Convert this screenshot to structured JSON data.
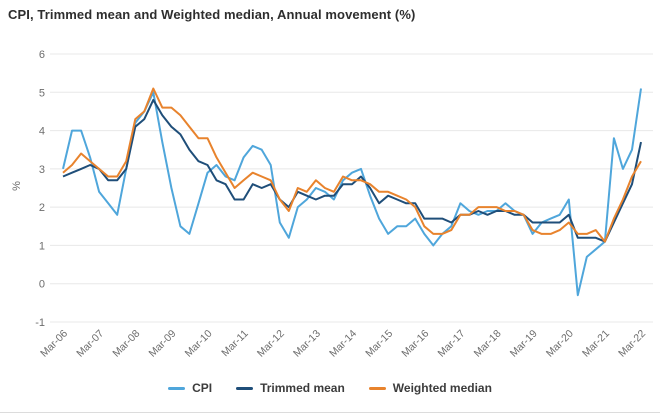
{
  "chart_data": {
    "type": "line",
    "title": "CPI, Trimmed mean and Weighted median, Annual movement (%)",
    "ylabel": "%",
    "ylim": [
      -1,
      6
    ],
    "y_ticks": [
      6,
      5,
      4,
      3,
      2,
      1,
      0,
      -1
    ],
    "x_tick_every": 4,
    "x_tick_labels": [
      "Mar-06",
      "Mar-07",
      "Mar-08",
      "Mar-09",
      "Mar-10",
      "Mar-11",
      "Mar-12",
      "Mar-13",
      "Mar-14",
      "Mar-15",
      "Mar-16",
      "Mar-17",
      "Mar-18",
      "Mar-19",
      "Mar-20",
      "Mar-21",
      "Mar-22"
    ],
    "grid": true,
    "legend_position": "bottom",
    "categories": [
      "Mar-06",
      "Jun-06",
      "Sep-06",
      "Dec-06",
      "Mar-07",
      "Jun-07",
      "Sep-07",
      "Dec-07",
      "Mar-08",
      "Jun-08",
      "Sep-08",
      "Dec-08",
      "Mar-09",
      "Jun-09",
      "Sep-09",
      "Dec-09",
      "Mar-10",
      "Jun-10",
      "Sep-10",
      "Dec-10",
      "Mar-11",
      "Jun-11",
      "Sep-11",
      "Dec-11",
      "Mar-12",
      "Jun-12",
      "Sep-12",
      "Dec-12",
      "Mar-13",
      "Jun-13",
      "Sep-13",
      "Dec-13",
      "Mar-14",
      "Jun-14",
      "Sep-14",
      "Dec-14",
      "Mar-15",
      "Jun-15",
      "Sep-15",
      "Dec-15",
      "Mar-16",
      "Jun-16",
      "Sep-16",
      "Dec-16",
      "Mar-17",
      "Jun-17",
      "Sep-17",
      "Dec-17",
      "Mar-18",
      "Jun-18",
      "Sep-18",
      "Dec-18",
      "Mar-19",
      "Jun-19",
      "Sep-19",
      "Dec-19",
      "Mar-20",
      "Jun-20",
      "Sep-20",
      "Dec-20",
      "Mar-21",
      "Jun-21",
      "Sep-21",
      "Dec-21",
      "Mar-22"
    ],
    "series": [
      {
        "name": "CPI",
        "color": "#4fa6db",
        "values": [
          3.0,
          4.0,
          4.0,
          3.3,
          2.4,
          2.1,
          1.8,
          3.0,
          4.2,
          4.5,
          5.0,
          3.7,
          2.5,
          1.5,
          1.3,
          2.1,
          2.9,
          3.1,
          2.8,
          2.7,
          3.3,
          3.6,
          3.5,
          3.1,
          1.6,
          1.2,
          2.0,
          2.2,
          2.5,
          2.4,
          2.2,
          2.7,
          2.9,
          3.0,
          2.3,
          1.7,
          1.3,
          1.5,
          1.5,
          1.7,
          1.3,
          1.0,
          1.3,
          1.5,
          2.1,
          1.9,
          1.8,
          1.9,
          1.9,
          2.1,
          1.9,
          1.8,
          1.3,
          1.6,
          1.7,
          1.8,
          2.2,
          -0.3,
          0.7,
          0.9,
          1.1,
          3.8,
          3.0,
          3.5,
          5.1
        ]
      },
      {
        "name": "Trimmed mean",
        "color": "#1f4e79",
        "values": [
          2.8,
          2.9,
          3.0,
          3.1,
          3.0,
          2.7,
          2.7,
          3.0,
          4.1,
          4.3,
          4.8,
          4.4,
          4.1,
          3.9,
          3.5,
          3.2,
          3.1,
          2.7,
          2.6,
          2.2,
          2.2,
          2.6,
          2.5,
          2.6,
          2.2,
          2.0,
          2.4,
          2.3,
          2.2,
          2.3,
          2.3,
          2.6,
          2.6,
          2.8,
          2.5,
          2.1,
          2.3,
          2.2,
          2.1,
          2.1,
          1.7,
          1.7,
          1.7,
          1.6,
          1.8,
          1.8,
          1.9,
          1.8,
          1.9,
          1.9,
          1.8,
          1.8,
          1.6,
          1.6,
          1.6,
          1.6,
          1.8,
          1.2,
          1.2,
          1.2,
          1.1,
          1.6,
          2.1,
          2.6,
          3.7
        ]
      },
      {
        "name": "Weighted median",
        "color": "#e8832d",
        "values": [
          2.9,
          3.1,
          3.4,
          3.2,
          3.0,
          2.8,
          2.8,
          3.2,
          4.3,
          4.5,
          5.1,
          4.6,
          4.6,
          4.4,
          4.1,
          3.8,
          3.8,
          3.3,
          2.9,
          2.5,
          2.7,
          2.9,
          2.8,
          2.7,
          2.2,
          1.9,
          2.5,
          2.4,
          2.7,
          2.5,
          2.4,
          2.8,
          2.7,
          2.7,
          2.6,
          2.4,
          2.4,
          2.3,
          2.2,
          2.0,
          1.5,
          1.3,
          1.3,
          1.4,
          1.8,
          1.8,
          2.0,
          2.0,
          2.0,
          1.9,
          1.9,
          1.8,
          1.4,
          1.3,
          1.3,
          1.4,
          1.6,
          1.3,
          1.3,
          1.4,
          1.1,
          1.7,
          2.2,
          2.8,
          3.2
        ]
      }
    ],
    "style": {
      "grid_color": "#e8e8e8",
      "tick_label_color": "#6d6d6d",
      "line_width": 2
    }
  }
}
